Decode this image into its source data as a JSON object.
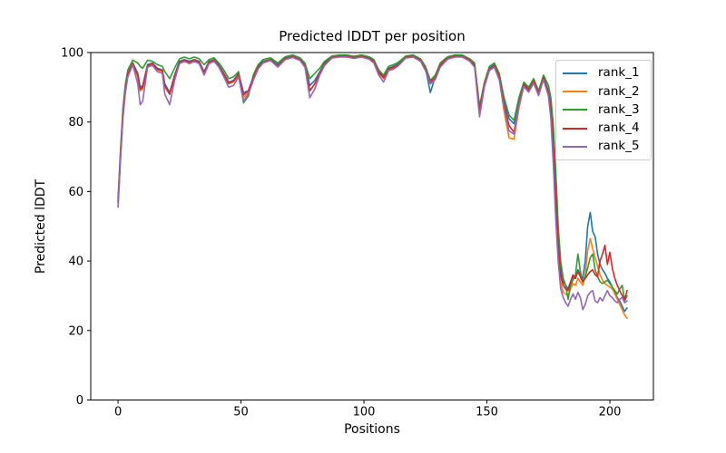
{
  "chart_data": {
    "type": "line",
    "title": "Predicted lDDT per position",
    "xlabel": "Positions",
    "ylabel": "Predicted lDDT",
    "xlim": [
      -11.1,
      217.7
    ],
    "ylim": [
      0,
      100
    ],
    "xticks": [
      0,
      50,
      100,
      150,
      200
    ],
    "yticks": [
      0,
      20,
      40,
      60,
      80,
      100
    ],
    "grid": false,
    "legend_position": "upper right",
    "text_color": "#000000",
    "x": [
      0,
      1,
      2,
      3,
      4,
      6,
      8,
      9,
      10,
      12,
      14,
      16,
      18,
      19,
      21,
      23,
      25,
      27,
      29,
      31,
      33,
      35,
      37,
      39,
      41,
      43,
      45,
      47,
      49,
      51,
      53,
      55,
      57,
      59,
      62,
      65,
      68,
      71,
      74,
      76,
      78,
      80,
      82,
      84,
      87,
      90,
      93,
      96,
      99,
      102,
      104,
      106,
      108,
      110,
      112,
      114,
      117,
      120,
      123,
      125,
      127,
      129,
      131,
      134,
      137,
      140,
      143,
      145,
      147,
      149,
      151,
      153,
      155,
      157,
      159,
      161,
      163,
      165,
      167,
      169,
      171,
      173,
      175,
      176,
      177,
      178,
      179,
      180,
      181,
      182,
      183,
      184,
      185,
      186,
      187,
      188,
      189,
      190,
      191,
      192,
      193,
      194,
      195,
      196,
      197,
      198,
      199,
      200,
      201,
      202,
      203,
      204,
      205,
      206,
      207
    ],
    "series": [
      {
        "name": "rank_1",
        "color": "#1f77b4",
        "values": [
          57,
          71,
          83,
          90,
          94,
          97,
          94,
          90,
          90.5,
          96.5,
          97,
          95.5,
          95,
          91,
          88.5,
          93.5,
          97.5,
          98,
          97.5,
          98,
          97.5,
          94.5,
          97.5,
          98,
          96.5,
          94,
          91.5,
          92,
          94,
          88.5,
          89,
          93,
          96,
          97.5,
          98,
          96.5,
          98.5,
          99,
          98,
          96.5,
          90.5,
          92,
          94.5,
          97,
          98.8,
          99,
          99,
          98.6,
          99,
          98.5,
          97.5,
          94.5,
          93,
          95.5,
          96,
          96.8,
          98.8,
          99,
          98,
          95.5,
          88.5,
          93,
          96.5,
          98.5,
          99,
          99,
          98,
          96.5,
          84,
          91,
          95.5,
          96.5,
          93.5,
          86,
          81,
          79.5,
          86.5,
          91,
          89.5,
          92,
          88.5,
          93,
          89,
          85,
          75,
          62,
          48,
          38,
          34,
          33,
          32,
          34,
          35.5,
          35,
          37.5,
          36,
          35,
          40,
          50,
          54,
          48.5,
          47,
          42,
          39,
          37.5,
          36.5,
          35,
          34,
          32.5,
          31,
          29.5,
          28.5,
          27,
          25.5,
          26.5
        ]
      },
      {
        "name": "rank_2",
        "color": "#ff7f0e",
        "values": [
          56,
          70,
          82,
          89,
          93.5,
          96.5,
          93,
          89,
          89.5,
          96,
          96.5,
          95,
          94.5,
          90,
          88,
          93,
          97,
          97.7,
          97.2,
          97.7,
          97.2,
          94,
          97.2,
          97.7,
          96,
          93.5,
          91,
          91.5,
          93.5,
          87,
          88.5,
          92.5,
          95.5,
          97.2,
          97.8,
          96,
          98.2,
          98.7,
          97.8,
          96,
          89,
          91,
          94,
          96.5,
          98.5,
          98.8,
          98.8,
          98.4,
          98.8,
          98.2,
          97.2,
          94,
          92.5,
          95,
          95.5,
          96.3,
          98.5,
          98.8,
          97.7,
          95,
          91,
          92.5,
          96,
          98.2,
          98.8,
          98.8,
          97.7,
          96,
          82,
          90.5,
          95,
          96,
          92.5,
          83,
          75.5,
          75,
          84,
          90.5,
          89,
          91.5,
          88,
          92.5,
          88,
          83,
          71,
          56,
          42,
          34,
          31,
          30.5,
          30,
          32,
          33.5,
          33,
          35,
          34,
          33,
          36,
          43,
          46.5,
          43.5,
          41,
          38.5,
          36,
          34.5,
          33.5,
          33,
          32.5,
          32,
          30.5,
          29,
          27.5,
          26,
          24.5,
          23.5
        ]
      },
      {
        "name": "rank_3",
        "color": "#2ca02c",
        "values": [
          58,
          72,
          84,
          91,
          95,
          97.8,
          97,
          96,
          95.5,
          97.8,
          97.5,
          96.5,
          96,
          94.5,
          92.5,
          95.5,
          98.2,
          98.7,
          98.2,
          98.7,
          98.2,
          96.5,
          98,
          98.5,
          97,
          95,
          92.5,
          93,
          94.5,
          85.5,
          87.5,
          93.5,
          96.5,
          98,
          98.5,
          97,
          98.8,
          99.3,
          98.5,
          97,
          92.5,
          94,
          95.5,
          97.5,
          99,
          99.3,
          99.3,
          98.9,
          99.3,
          98.8,
          98,
          95,
          93.5,
          96,
          96.5,
          97.2,
          99,
          99.3,
          98.2,
          96,
          92,
          93.5,
          97,
          98.8,
          99.3,
          99.3,
          98.2,
          97,
          84.5,
          91.5,
          96,
          97,
          94,
          87,
          82,
          80.5,
          87,
          91.5,
          90,
          92.5,
          89,
          93.5,
          90.5,
          87,
          79,
          66,
          50,
          40,
          35,
          33,
          29,
          33,
          34.5,
          36,
          42,
          37,
          34,
          35.5,
          38,
          41,
          42,
          37.5,
          35.5,
          34,
          33.5,
          34,
          34.5,
          33.5,
          32.5,
          31.5,
          30.5,
          32,
          33,
          28.5,
          30
        ]
      },
      {
        "name": "rank_4",
        "color": "#d62728",
        "values": [
          57,
          70.5,
          82.5,
          89.5,
          94,
          97,
          93.5,
          89.5,
          90,
          96.3,
          96.8,
          95.2,
          94.8,
          90.5,
          88,
          93.2,
          97.2,
          97.8,
          97.3,
          97.8,
          97.3,
          94.2,
          97.3,
          97.8,
          96.2,
          93.8,
          91.2,
          91.8,
          93.8,
          87.8,
          89,
          92.8,
          95.8,
          97.3,
          98,
          96.2,
          98.3,
          98.8,
          98,
          96.2,
          89,
          91,
          94,
          96.8,
          98.6,
          98.9,
          98.9,
          98.5,
          98.9,
          98.4,
          97.4,
          94.2,
          92.8,
          95.2,
          95.8,
          96.5,
          98.6,
          98.9,
          97.8,
          95.2,
          91.5,
          92.8,
          96.2,
          98.4,
          98.9,
          98.9,
          97.8,
          96.2,
          83.5,
          90.8,
          95.2,
          96.2,
          93,
          85,
          79,
          77,
          85,
          90.8,
          89.2,
          91.8,
          88.2,
          92.8,
          88.5,
          84,
          73,
          59,
          45,
          36,
          33,
          32,
          31.5,
          34,
          36,
          35,
          37,
          35.5,
          34,
          35,
          36,
          37,
          37.5,
          36,
          35.5,
          40,
          42,
          44.5,
          39,
          42.5,
          38,
          35,
          33,
          31.5,
          30,
          29,
          31.5
        ]
      },
      {
        "name": "rank_5",
        "color": "#9467bd",
        "values": [
          55.5,
          69,
          81,
          88.5,
          93,
          96.5,
          91,
          85,
          86,
          95.8,
          96.3,
          94.5,
          94,
          88,
          85,
          92,
          96.8,
          97.5,
          96.8,
          97.5,
          96.8,
          93.5,
          96.8,
          97.5,
          95.8,
          93,
          90,
          90.5,
          93,
          86,
          88,
          92,
          95.3,
          97,
          97.7,
          95.8,
          98,
          98.6,
          97.7,
          95.8,
          87,
          89.5,
          93.5,
          96.3,
          98.4,
          98.7,
          98.7,
          98.3,
          98.7,
          98.1,
          97,
          93.5,
          91.5,
          94.8,
          95.2,
          96.2,
          98.4,
          98.7,
          97.5,
          94.8,
          91,
          92.2,
          95.8,
          98.1,
          98.7,
          98.7,
          97.5,
          95.8,
          81.5,
          90.2,
          94.8,
          95.8,
          92.2,
          84,
          77.5,
          76.5,
          84.5,
          90.2,
          88.6,
          91.2,
          87.6,
          92.2,
          87.5,
          81,
          68,
          52,
          40,
          32,
          29.5,
          28,
          27,
          29,
          30.5,
          29,
          31,
          29.5,
          26,
          27.5,
          30,
          31,
          31.5,
          28.5,
          28,
          29.5,
          28.5,
          30,
          31.5,
          30,
          29.5,
          28.5,
          28,
          29,
          29.5,
          28,
          28.5
        ]
      }
    ]
  }
}
